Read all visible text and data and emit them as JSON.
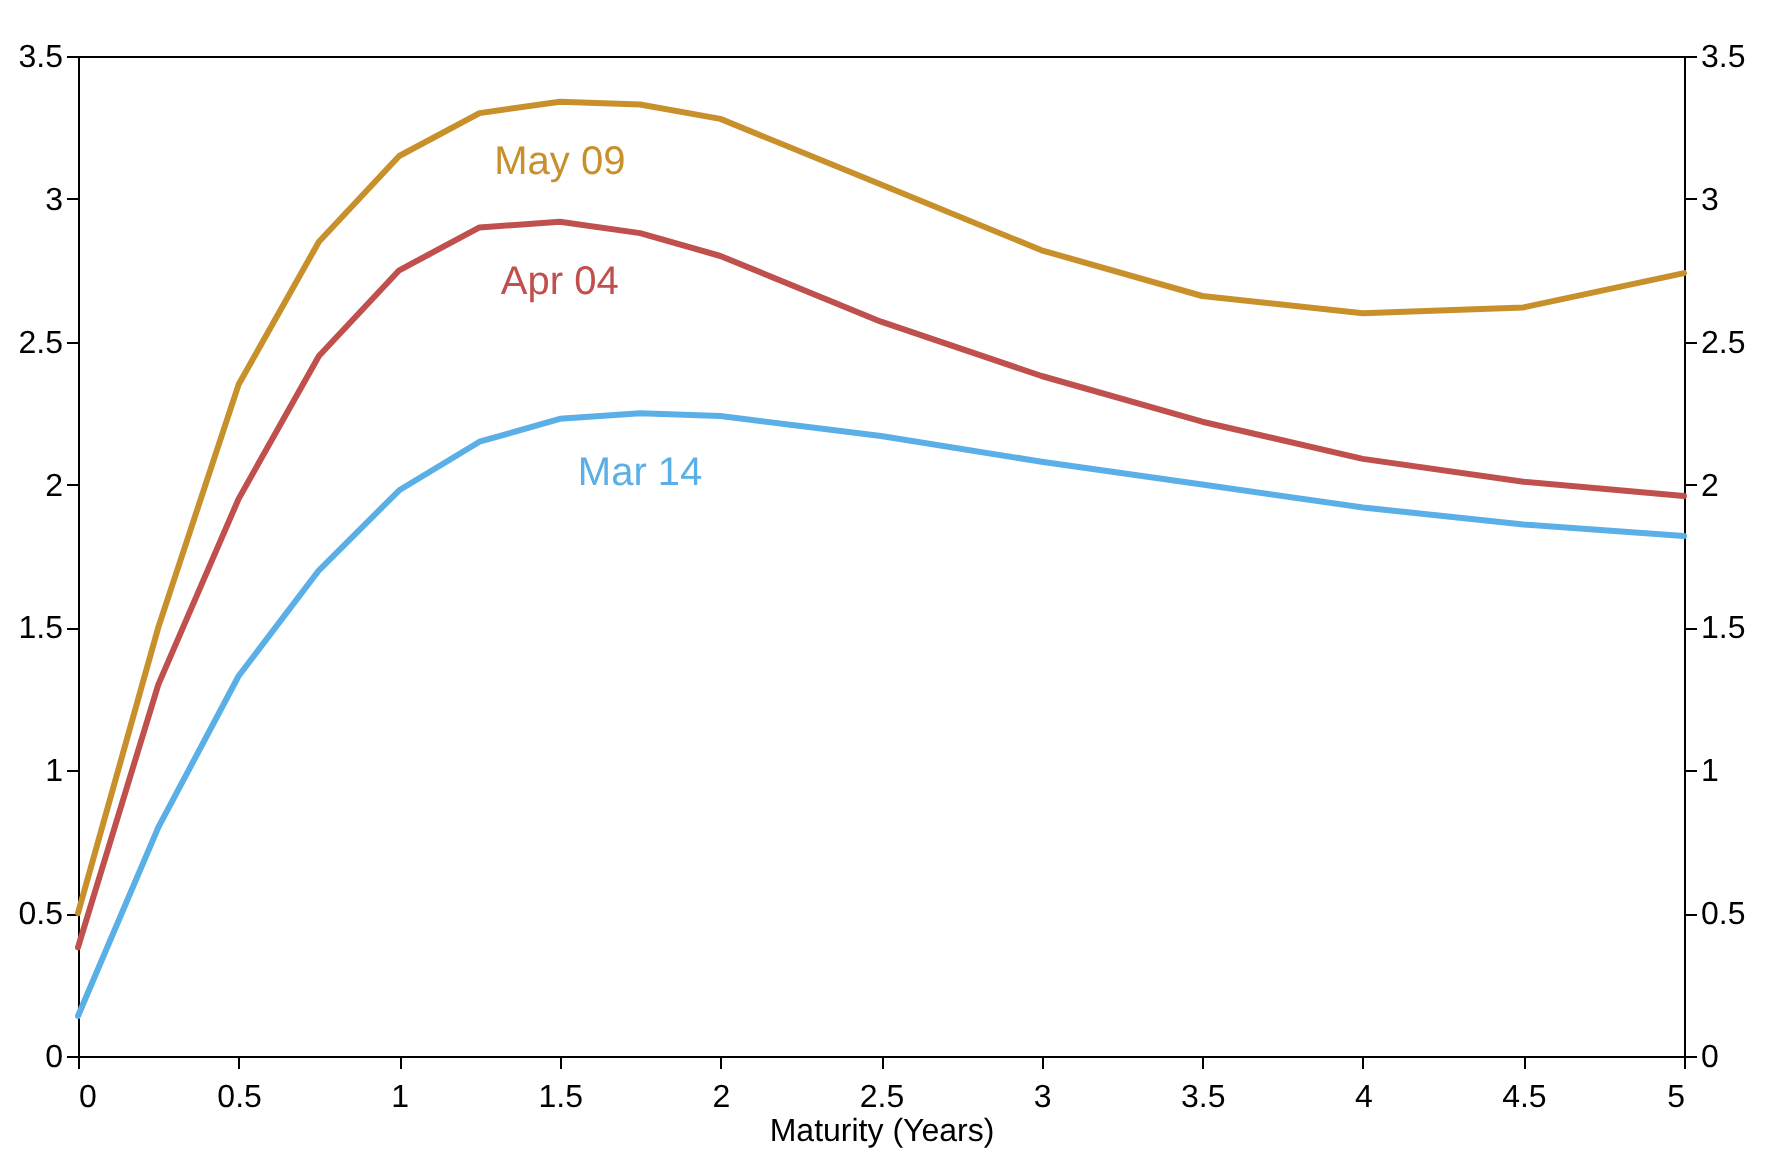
{
  "chart_data": {
    "type": "line",
    "xlabel": "Maturity (Years)",
    "x": [
      0,
      0.25,
      0.5,
      0.75,
      1,
      1.25,
      1.5,
      1.75,
      2,
      2.5,
      3,
      3.5,
      4,
      4.5,
      5
    ],
    "series": [
      {
        "name": "May 09",
        "color": "#c8902a",
        "values": [
          0.5,
          1.5,
          2.35,
          2.85,
          3.15,
          3.3,
          3.34,
          3.33,
          3.28,
          3.05,
          2.82,
          2.66,
          2.6,
          2.62,
          2.74
        ]
      },
      {
        "name": "Apr 04",
        "color": "#c0504d",
        "values": [
          0.38,
          1.3,
          1.95,
          2.45,
          2.75,
          2.9,
          2.92,
          2.88,
          2.8,
          2.57,
          2.38,
          2.22,
          2.09,
          2.01,
          1.96
        ]
      },
      {
        "name": "Mar 14",
        "color": "#5aafe6",
        "values": [
          0.14,
          0.8,
          1.33,
          1.7,
          1.98,
          2.15,
          2.23,
          2.25,
          2.24,
          2.17,
          2.08,
          2.0,
          1.92,
          1.86,
          1.82
        ]
      }
    ],
    "xlim": [
      0,
      5
    ],
    "xticks": [
      0,
      0.5,
      1,
      1.5,
      2,
      2.5,
      3,
      3.5,
      4,
      4.5,
      5
    ],
    "ylim": [
      0,
      3.5
    ],
    "yticks": [
      0,
      0.5,
      1,
      1.5,
      2,
      2.5,
      3,
      3.5
    ],
    "y2lim": [
      0,
      3.5
    ],
    "y2ticks": [
      0,
      0.5,
      1,
      1.5,
      2,
      2.5,
      3,
      3.5
    ],
    "grid": false,
    "legend": false,
    "marker": "none",
    "line_style": "solid"
  }
}
